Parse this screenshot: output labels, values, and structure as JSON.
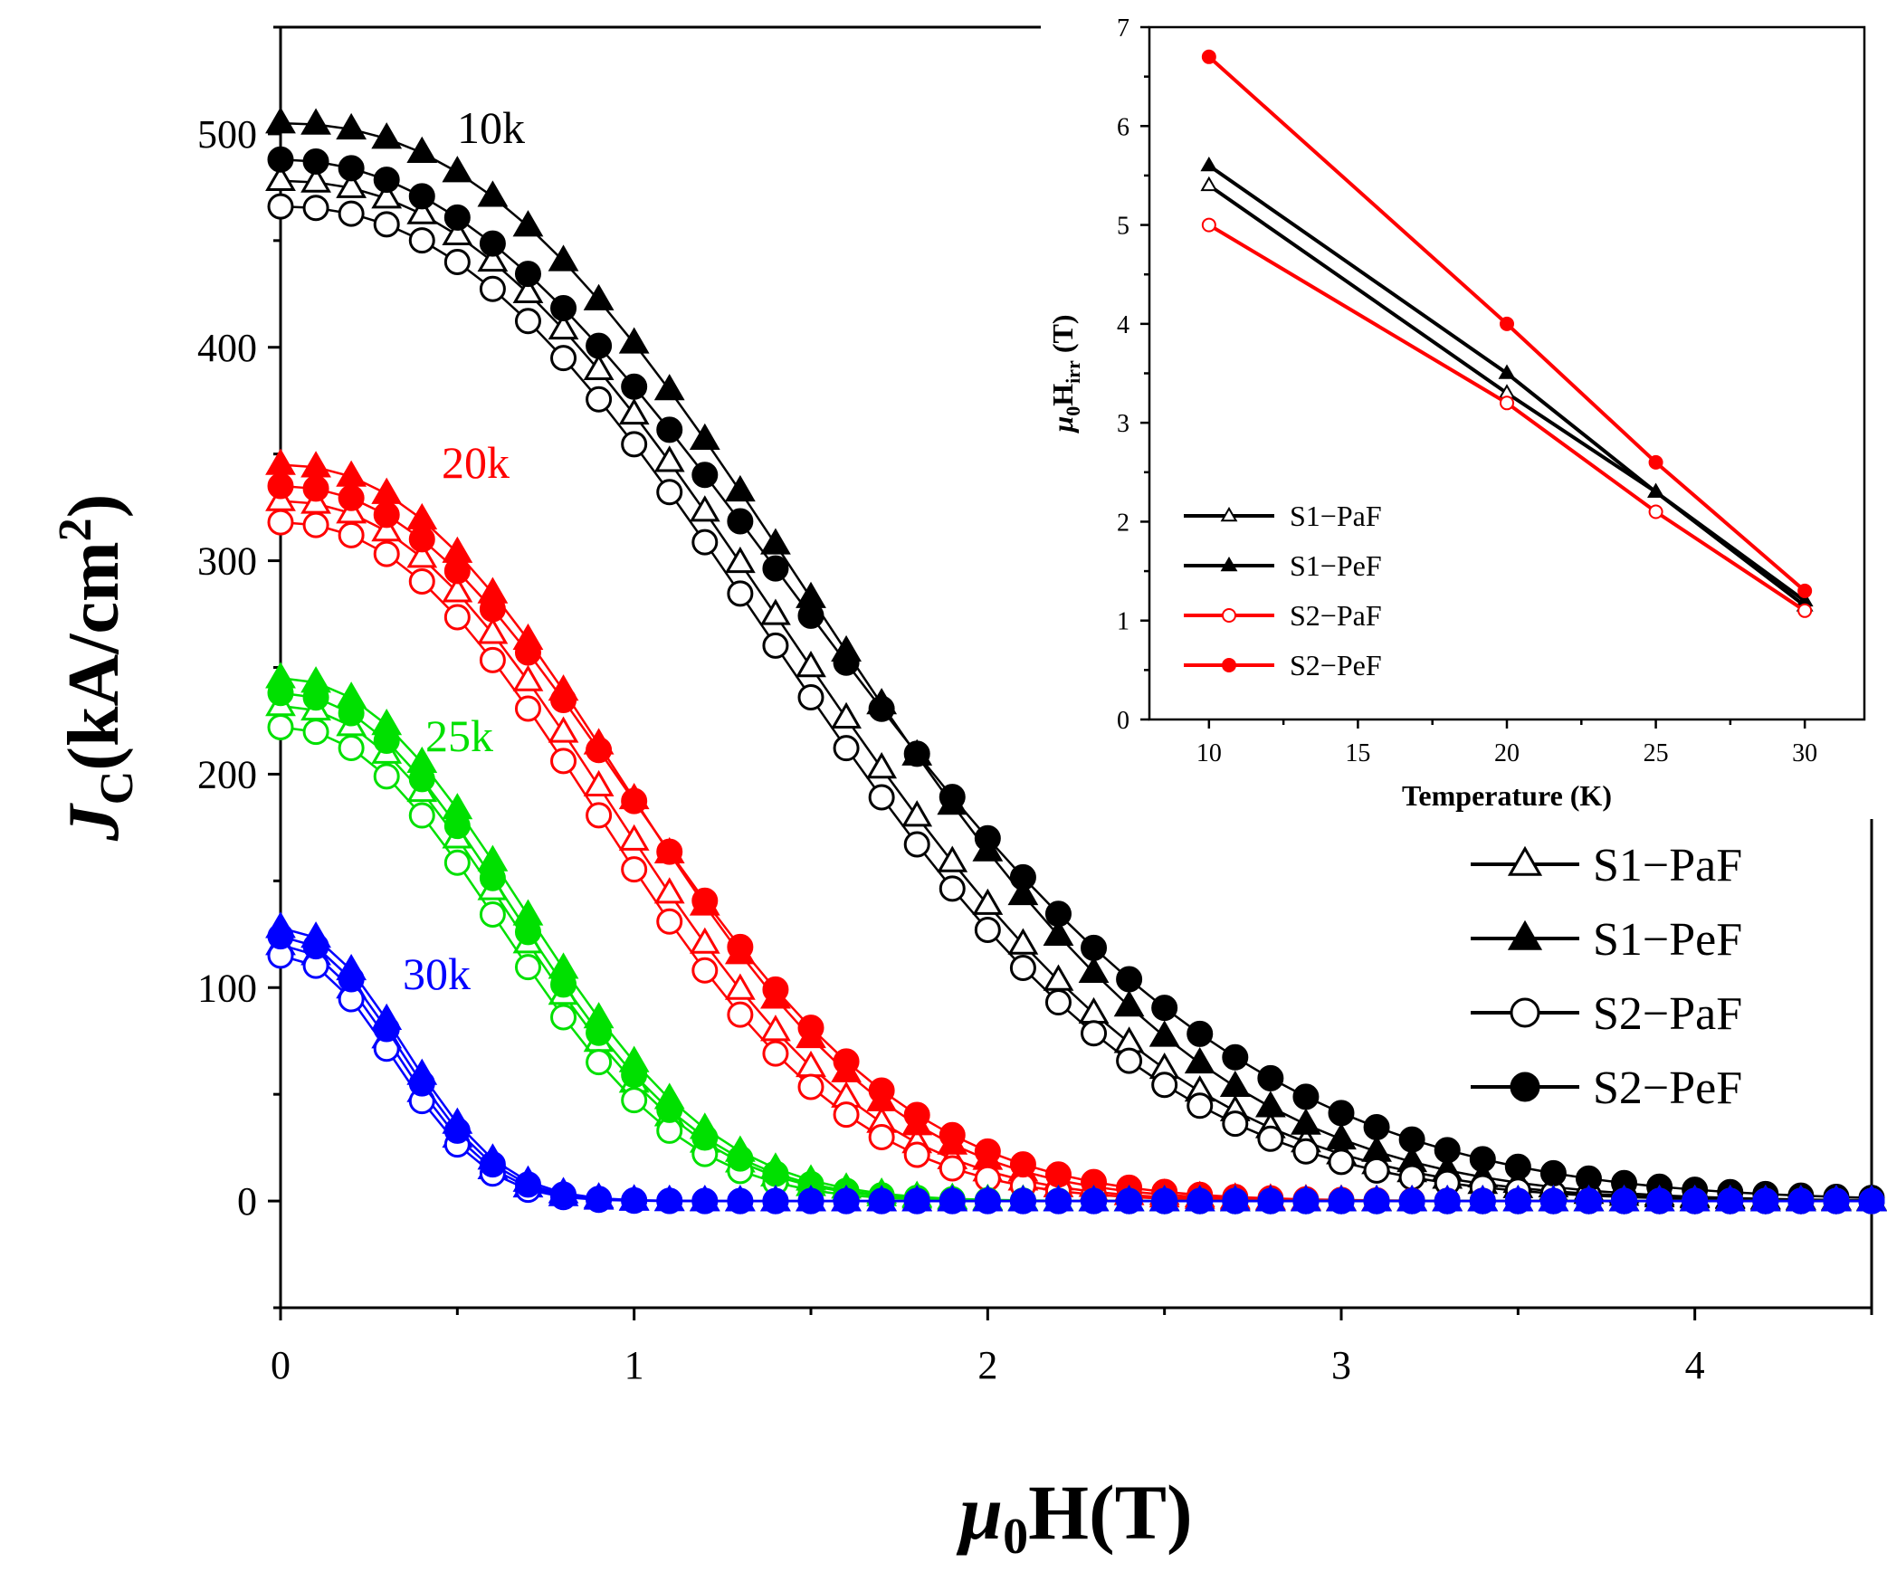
{
  "chart_data": [
    {
      "type": "scatter",
      "xlabel": {
        "main": "μ",
        "sub": "0",
        "rest": "H(T)"
      },
      "ylabel": {
        "main": "J",
        "sub": "C",
        "rest": "(kA/cm",
        "sup": "2",
        "end": ")"
      },
      "xlim": [
        0,
        4.5
      ],
      "ylim": [
        -50,
        550
      ],
      "xticks": [
        "0",
        "1",
        "2",
        "3",
        "4"
      ],
      "yticks": [
        "0",
        "100",
        "200",
        "300",
        "400",
        "500"
      ],
      "temperature_labels": [
        {
          "text": "10k",
          "color": "#000000"
        },
        {
          "text": "20k",
          "color": "#ff0000"
        },
        {
          "text": "25k",
          "color": "#00e000"
        },
        {
          "text": "30k",
          "color": "#0000ff"
        }
      ],
      "legend": [
        {
          "name": "S1−PaF",
          "marker": "triangle-open"
        },
        {
          "name": "S1−PeF",
          "marker": "triangle-filled"
        },
        {
          "name": "S2−PaF",
          "marker": "circle-open"
        },
        {
          "name": "S2−PeF",
          "marker": "circle-filled"
        }
      ],
      "legend_position": "bottom-right",
      "curves": [
        {
          "temperature": "10k",
          "color": "#000000",
          "field_max": 4.5,
          "series": [
            {
              "name": "S1−PaF",
              "marker": "triangle-open",
              "J0": 478,
              "B0": 1.82,
              "n": 2.25
            },
            {
              "name": "S1−PeF",
              "marker": "triangle-filled",
              "J0": 505,
              "B0": 1.9,
              "n": 2.3
            },
            {
              "name": "S2−PaF",
              "marker": "circle-open",
              "J0": 466,
              "B0": 1.78,
              "n": 2.25
            },
            {
              "name": "S2−PeF",
              "marker": "circle-filled",
              "J0": 488,
              "B0": 1.95,
              "n": 2.1
            }
          ]
        },
        {
          "temperature": "20k",
          "color": "#ff0000",
          "field_max": 4.5,
          "series": [
            {
              "name": "S1−PaF",
              "marker": "triangle-open",
              "J0": 328,
              "B0": 1.2,
              "n": 2.25
            },
            {
              "name": "S1−PeF",
              "marker": "triangle-filled",
              "J0": 345,
              "B0": 1.25,
              "n": 2.25
            },
            {
              "name": "S2−PaF",
              "marker": "circle-open",
              "J0": 318,
              "B0": 1.16,
              "n": 2.25
            },
            {
              "name": "S2−PeF",
              "marker": "circle-filled",
              "J0": 335,
              "B0": 1.28,
              "n": 2.2
            }
          ]
        },
        {
          "temperature": "25k",
          "color": "#00e000",
          "field_max": 4.5,
          "series": [
            {
              "name": "S1−PaF",
              "marker": "triangle-open",
              "J0": 232,
              "B0": 0.85,
              "n": 2.2
            },
            {
              "name": "S1−PeF",
              "marker": "triangle-filled",
              "J0": 245,
              "B0": 0.88,
              "n": 2.2
            },
            {
              "name": "S2−PaF",
              "marker": "circle-open",
              "J0": 222,
              "B0": 0.82,
              "n": 2.2
            },
            {
              "name": "S2−PeF",
              "marker": "circle-filled",
              "J0": 238,
              "B0": 0.86,
              "n": 2.2
            }
          ]
        },
        {
          "temperature": "30k",
          "color": "#0000ff",
          "field_max": 4.5,
          "series": [
            {
              "name": "S1−PaF",
              "marker": "triangle-open",
              "J0": 120,
              "B0": 0.43,
              "n": 2.2
            },
            {
              "name": "S1−PeF",
              "marker": "triangle-filled",
              "J0": 128,
              "B0": 0.45,
              "n": 2.2
            },
            {
              "name": "S2−PaF",
              "marker": "circle-open",
              "J0": 115,
              "B0": 0.42,
              "n": 2.2
            },
            {
              "name": "S2−PeF",
              "marker": "circle-filled",
              "J0": 124,
              "B0": 0.44,
              "n": 2.2
            }
          ]
        }
      ],
      "grid": false
    },
    {
      "type": "line",
      "role": "inset",
      "xlabel": "Temperature (K)",
      "ylabel": {
        "main": "μ",
        "sub": "0",
        "rest": "H",
        "sub2": "irr",
        "end": " (T)"
      },
      "xlim": [
        8,
        32
      ],
      "ylim": [
        0,
        7
      ],
      "xticks": [
        "10",
        "15",
        "20",
        "25",
        "30"
      ],
      "yticks": [
        "0",
        "1",
        "2",
        "3",
        "4",
        "5",
        "6",
        "7"
      ],
      "x": [
        10,
        20,
        25,
        30
      ],
      "series": [
        {
          "name": "S1−PaF",
          "color": "#000000",
          "marker": "triangle-open",
          "values": [
            5.4,
            3.3,
            2.3,
            1.15
          ]
        },
        {
          "name": "S1−PeF",
          "color": "#000000",
          "marker": "triangle-filled",
          "values": [
            5.6,
            3.5,
            2.3,
            1.2
          ]
        },
        {
          "name": "S2−PaF",
          "color": "#ff0000",
          "marker": "circle-open",
          "values": [
            5.0,
            3.2,
            2.1,
            1.1
          ]
        },
        {
          "name": "S2−PeF",
          "color": "#ff0000",
          "marker": "circle-filled",
          "values": [
            6.7,
            4.0,
            2.6,
            1.3
          ]
        }
      ],
      "legend_position": "bottom-left",
      "grid": false
    }
  ]
}
